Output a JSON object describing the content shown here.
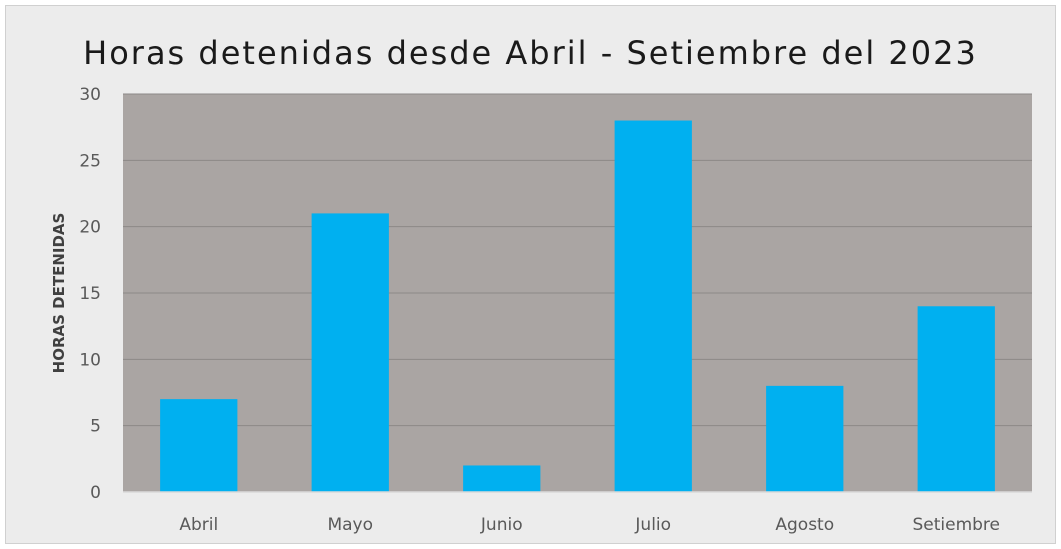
{
  "chart_data": {
    "type": "bar",
    "title": "Horas detenidas desde Abril - Setiembre del 2023",
    "xlabel": "",
    "ylabel": "HORAS DETENIDAS",
    "categories": [
      "Abril",
      "Mayo",
      "Junio",
      "Julio",
      "Agosto",
      "Setiembre"
    ],
    "values": [
      7,
      21,
      2,
      28,
      8,
      14
    ],
    "ylim": [
      0,
      30
    ],
    "yticks": [
      0,
      5,
      10,
      15,
      20,
      25,
      30
    ],
    "grid": true,
    "legend": "none",
    "colors": {
      "bar": "#00b0f0",
      "plot_background": "#aaa5a3",
      "gridline": "#8c8987",
      "frame_background": "#ececec"
    }
  }
}
